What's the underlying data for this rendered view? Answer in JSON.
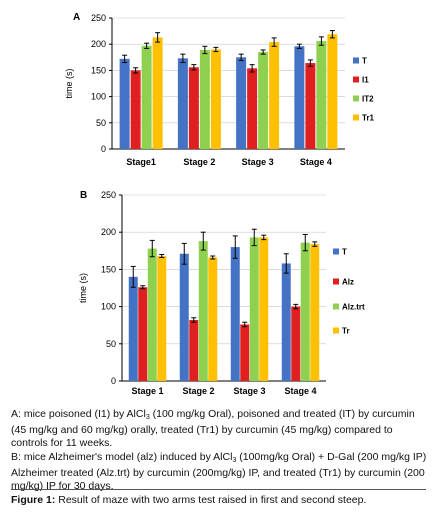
{
  "chart_data": [
    {
      "type": "bar",
      "panel_label": "A",
      "categories": [
        "Stage1",
        "Stage 2",
        "Stage 3",
        "Stage 4"
      ],
      "ylabel": "time (s)",
      "xlabel": "",
      "ylim": [
        0,
        250
      ],
      "yticks": [
        0,
        50,
        100,
        150,
        200,
        250
      ],
      "grid": true,
      "legend_position": "right",
      "series": [
        {
          "name": "T",
          "color": "#4472C4",
          "values": [
            172,
            173,
            175,
            196
          ],
          "errors": [
            7,
            8,
            6,
            4
          ]
        },
        {
          "name": "I1",
          "color": "#E02020",
          "values": [
            150,
            156,
            154,
            164
          ],
          "errors": [
            5,
            5,
            7,
            6
          ]
        },
        {
          "name": "IT2",
          "color": "#8FD14F",
          "values": [
            197,
            189,
            185,
            206
          ],
          "errors": [
            5,
            7,
            4,
            8
          ]
        },
        {
          "name": "Tr1",
          "color": "#FFC000",
          "values": [
            213,
            190,
            204,
            219
          ],
          "errors": [
            9,
            4,
            8,
            7
          ]
        }
      ]
    },
    {
      "type": "bar",
      "panel_label": "B",
      "categories": [
        "Stage 1",
        "Stage 2",
        "Stage 3",
        "Stage 4"
      ],
      "ylabel": "time (s)",
      "xlabel": "",
      "ylim": [
        0,
        250
      ],
      "yticks": [
        0,
        50,
        100,
        150,
        200,
        250
      ],
      "grid": true,
      "legend_position": "right",
      "series": [
        {
          "name": "T",
          "color": "#4472C4",
          "values": [
            140,
            171,
            180,
            158
          ],
          "errors": [
            14,
            14,
            15,
            13
          ]
        },
        {
          "name": "Alz",
          "color": "#E02020",
          "values": [
            126,
            82,
            76,
            100
          ],
          "errors": [
            2,
            3,
            3,
            3
          ]
        },
        {
          "name": "Alz.trt",
          "color": "#8FD14F",
          "values": [
            178,
            188,
            193,
            186
          ],
          "errors": [
            11,
            12,
            11,
            11
          ]
        },
        {
          "name": "Tr",
          "color": "#FFC000",
          "values": [
            168,
            166,
            193,
            184
          ],
          "errors": [
            2,
            2,
            3,
            3
          ]
        }
      ]
    }
  ],
  "caption": {
    "a_pre": "A: mice poisoned (I1) by AlCl",
    "a_sub": "3",
    "a_post": " (100 mg/kg Oral), poisoned and treated (IT) by curcumin (45 mg/kg and 60 mg/kg) orally, treated (Tr1) by curcumin (45 mg/kg) compared to controls for 11 weeks.",
    "b_pre": "B: mice Alzheimer's model (alz) induced by AlCl",
    "b_sub": "3",
    "b_post": " (100mg/kg Oral) + D-Gal (200 mg/kg IP) Alzheimer treated (Alz.trt) by curcumin (200mg/kg) IP, and treated (Tr1) by curcumin (200 mg/kg) IP for 30 days."
  },
  "figure_caption": {
    "label": "Figure 1:",
    "text": " Result of maze with two arms test raised in first and second steep."
  }
}
